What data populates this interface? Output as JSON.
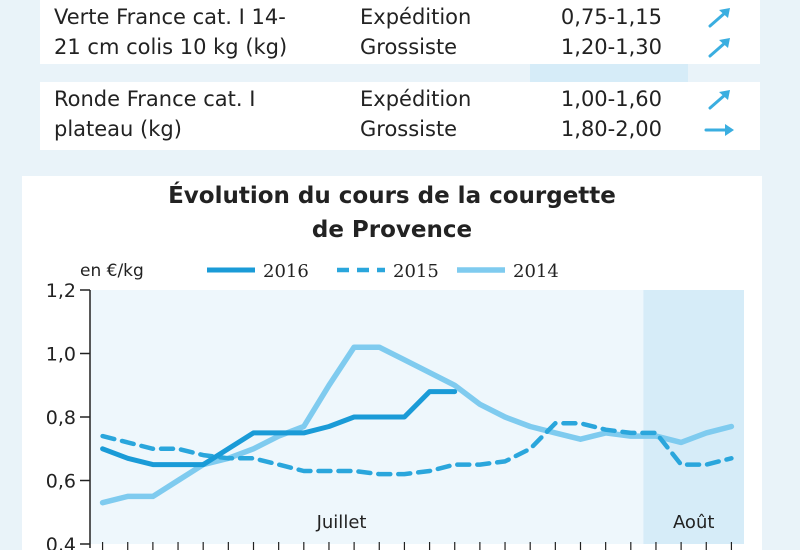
{
  "table": {
    "rows": [
      {
        "product": [
          "Verte France cat. I 14-",
          "21 cm colis 10 kg (kg)"
        ],
        "lines": [
          {
            "type": "Expédition",
            "price": "0,75-1,15",
            "trend": "up"
          },
          {
            "type": "Grossiste",
            "price": "1,20-1,30",
            "trend": "up"
          }
        ]
      },
      {
        "product": [
          "Ronde France cat. I",
          "plateau (kg)"
        ],
        "lines": [
          {
            "type": "Expédition",
            "price": "1,00-1,60",
            "trend": "up"
          },
          {
            "type": "Grossiste",
            "price": "1,80-2,00",
            "trend": "stable"
          }
        ]
      }
    ]
  },
  "colors": {
    "accent": "#3aaee0",
    "s2016": "#1a9bd7",
    "s2015": "#2aa6dc",
    "s2014": "#7fcbef",
    "aout_band": "#d6ecf8"
  },
  "chart_data": {
    "type": "line",
    "title": "Évolution du cours de la courgette de Provence",
    "title_lines": [
      "Évolution du cours de la courgette",
      "de Provence"
    ],
    "ylabel": "en €/kg",
    "ylim": [
      0.4,
      1.2
    ],
    "yticks": [
      "0,4",
      "0,6",
      "0,8",
      "1,0",
      "1,2"
    ],
    "ytick_values": [
      0.4,
      0.6,
      0.8,
      1.0,
      1.2
    ],
    "x": [
      1,
      2,
      3,
      4,
      5,
      6,
      7,
      8,
      9,
      10,
      11,
      12,
      13,
      14,
      15,
      16,
      17,
      18,
      19,
      20,
      21,
      22,
      23,
      24,
      25,
      26
    ],
    "period_labels": [
      {
        "label": "Juillet",
        "x": 10.5
      },
      {
        "label": "Août",
        "x": 24.5
      }
    ],
    "aout_start": 22.5,
    "legend_placement": "top",
    "series": [
      {
        "name": "2016",
        "style": "solid-thick",
        "values": [
          0.7,
          0.67,
          0.65,
          0.65,
          0.65,
          0.7,
          0.75,
          0.75,
          0.75,
          0.77,
          0.8,
          0.8,
          0.8,
          0.88,
          0.88,
          null,
          null,
          null,
          null,
          null,
          null,
          null,
          null,
          null,
          null,
          null
        ]
      },
      {
        "name": "2015",
        "style": "dashed",
        "values": [
          0.74,
          0.72,
          0.7,
          0.7,
          0.68,
          0.67,
          0.67,
          0.65,
          0.63,
          0.63,
          0.63,
          0.62,
          0.62,
          0.63,
          0.65,
          0.65,
          0.66,
          0.7,
          0.78,
          0.78,
          0.76,
          0.75,
          0.75,
          0.65,
          0.65,
          0.67
        ]
      },
      {
        "name": "2014",
        "style": "solid-light",
        "values": [
          0.53,
          0.55,
          0.55,
          0.6,
          0.65,
          0.67,
          0.7,
          0.74,
          0.77,
          0.9,
          1.02,
          1.02,
          0.98,
          0.94,
          0.9,
          0.84,
          0.8,
          0.77,
          0.75,
          0.73,
          0.75,
          0.74,
          0.74,
          0.72,
          0.75,
          0.77
        ]
      }
    ]
  }
}
